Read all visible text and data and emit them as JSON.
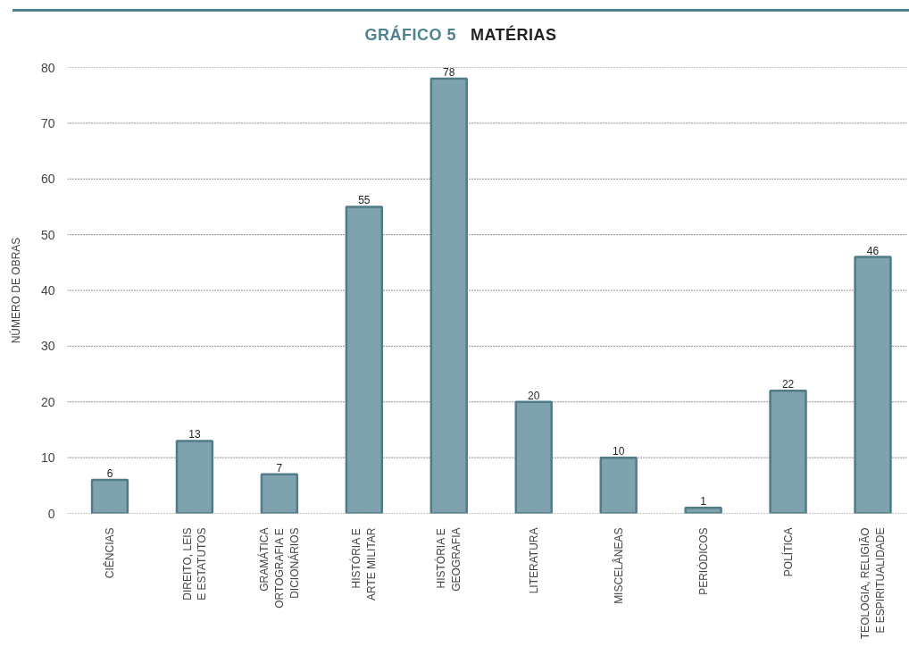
{
  "chart_data": {
    "type": "bar",
    "title": "GRÁFICO 5",
    "subtitle": "MATÉRIAS",
    "ylabel": "NÚMERO DE OBRAS",
    "categories": [
      "CIÊNCIAS",
      "DIREITO, LEIS\nE ESTATUTOS",
      "GRAMÁTICA\nORTOGRAFIA E\nDICIONÁRIOS",
      "HISTÓRIA E\nARTE MILITAR",
      "HISTÓRIA E\nGEOGRAFIA",
      "LITERATURA",
      "MISCELÂNEAS",
      "PERIÓDICOS",
      "POLÍTICA",
      "TEOLOGIA, RELIGIÃO\nE ESPIRITUALIDADE"
    ],
    "values": [
      6,
      13,
      7,
      55,
      78,
      20,
      10,
      1,
      22,
      46
    ],
    "color": "#7fa3ae",
    "ylim": [
      0,
      80
    ],
    "yticks": [
      0,
      10,
      20,
      30,
      40,
      50,
      60,
      70,
      80
    ],
    "grid": "y",
    "data_labels": true
  }
}
